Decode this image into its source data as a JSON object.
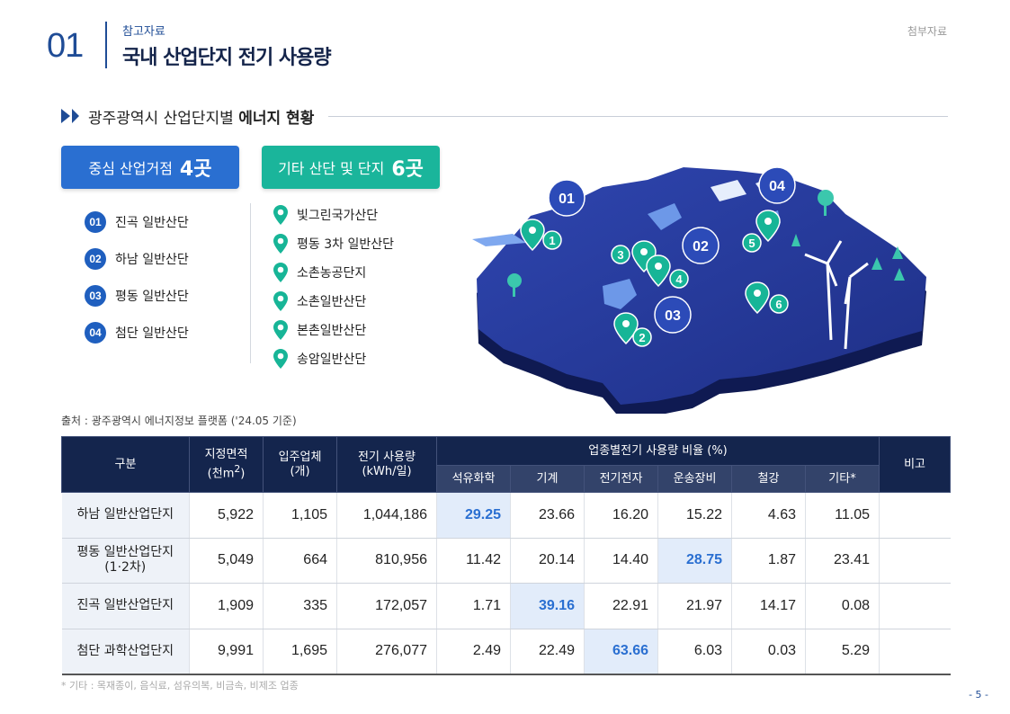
{
  "header": {
    "chapter_number": "01",
    "subtitle": "참고자료",
    "title": "국내 산업단지 전기 사용량",
    "attachment_label": "첨부자료"
  },
  "section": {
    "title_prefix": "광주광역시 산업단지별 ",
    "title_bold": "에너지 현황"
  },
  "core": {
    "label": "중심 산업거점",
    "count": "4곳",
    "items": [
      {
        "num": "01",
        "name": "진곡 일반산단"
      },
      {
        "num": "02",
        "name": "하남 일반산단"
      },
      {
        "num": "03",
        "name": "평동 일반산단"
      },
      {
        "num": "04",
        "name": "첨단 일반산단"
      }
    ]
  },
  "other": {
    "label": "기타 산단 및 단지",
    "count": "6곳",
    "items": [
      {
        "name": "빛그린국가산단"
      },
      {
        "name": "평동 3차 일반산단"
      },
      {
        "name": "소촌농공단지"
      },
      {
        "name": "소촌일반산단"
      },
      {
        "name": "본촌일반산단"
      },
      {
        "name": "송암일반산단"
      }
    ]
  },
  "map": {
    "core_markers": [
      "01",
      "02",
      "03",
      "04"
    ],
    "other_markers": [
      "1",
      "2",
      "3",
      "4",
      "5",
      "6"
    ],
    "colors": {
      "land": "#2a3f9e",
      "land_dark": "#15226b",
      "core_marker": "#2c4bb8",
      "other_marker": "#17b597"
    }
  },
  "source": "출처 : 광주광역시 에너지정보 플랫폼 ('24.05 기준)",
  "table": {
    "headers": {
      "category": "구분",
      "area": "지정면적",
      "area_unit_pre": "(천m",
      "area_unit_sup": "2",
      "area_unit_post": ")",
      "companies": "입주업체",
      "companies_unit": "(개)",
      "usage": "전기 사용량",
      "usage_unit": "(kWh/일)",
      "ratio_group": "업종별전기 사용량 비율 (%)",
      "note": "비고",
      "ratio_cols": [
        "석유화학",
        "기계",
        "전기전자",
        "운송장비",
        "철강",
        "기타*"
      ]
    },
    "rows": [
      {
        "name": "하남 일반산업단지",
        "name2": "",
        "area": "5,922",
        "companies": "1,105",
        "usage": "1,044,186",
        "ratios": [
          "29.25",
          "23.66",
          "16.20",
          "15.22",
          "4.63",
          "11.05"
        ],
        "highlight": 0,
        "note": ""
      },
      {
        "name": "평동 일반산업단지",
        "name2": "(1·2차)",
        "area": "5,049",
        "companies": "664",
        "usage": "810,956",
        "ratios": [
          "11.42",
          "20.14",
          "14.40",
          "28.75",
          "1.87",
          "23.41"
        ],
        "highlight": 3,
        "note": ""
      },
      {
        "name": "진곡 일반산업단지",
        "name2": "",
        "area": "1,909",
        "companies": "335",
        "usage": "172,057",
        "ratios": [
          "1.71",
          "39.16",
          "22.91",
          "21.97",
          "14.17",
          "0.08"
        ],
        "highlight": 1,
        "note": ""
      },
      {
        "name": "첨단 과학산업단지",
        "name2": "",
        "area": "9,991",
        "companies": "1,695",
        "usage": "276,077",
        "ratios": [
          "2.49",
          "22.49",
          "63.66",
          "6.03",
          "0.03",
          "5.29"
        ],
        "highlight": 2,
        "note": ""
      }
    ]
  },
  "footnote": "* 기타 : 목재종이, 음식료, 섬유의복, 비금속, 비제조 업종",
  "page": "- 5 -",
  "colors": {
    "primary": "#1f4c96",
    "blue_pill": "#2a6fd1",
    "green_pill": "#1ab59b",
    "table_header": "#14254d",
    "highlight": "#2a6fd1"
  }
}
